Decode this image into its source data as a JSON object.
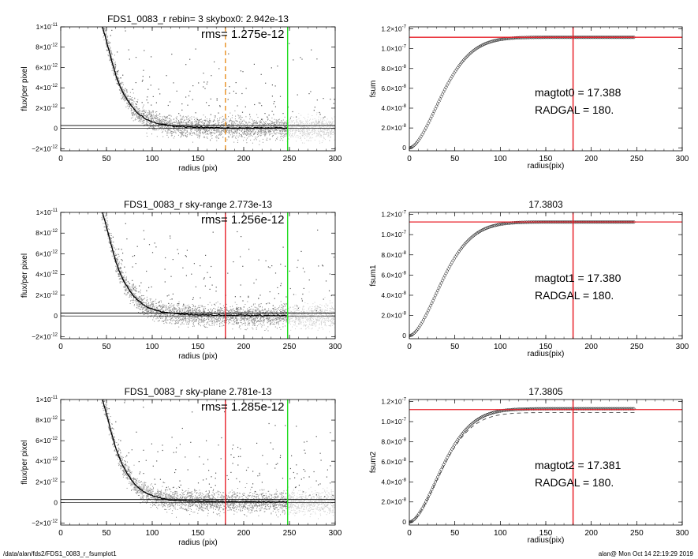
{
  "footer": {
    "path": "/data/alan/fds2/FDS1_0083_r_fsumplot1",
    "stamp": "alan@  Mon Oct 14 22:19:29 2019"
  },
  "colors": {
    "red": "#e8202a",
    "green": "#22dd22",
    "orange": "#e89020",
    "grey": "#8a8a8a",
    "light_grey": "#cfcfcf"
  },
  "chart_data": [
    {
      "id": "profile-1",
      "type": "scatter",
      "title": "FDS1_0083_r rebin= 3    skybox0:  2.942e-13",
      "annotation": "rms= 1.275e-12",
      "xlabel": "radius (pix)",
      "ylabel": "flux/per pixel",
      "xlim": [
        0,
        300
      ],
      "ylim": [
        -2.2e-12,
        1e-11
      ],
      "xticks": [
        "0",
        "50",
        "100",
        "150",
        "200",
        "250",
        "300"
      ],
      "yticks": [
        {
          "v": -2e-12,
          "m": "2",
          "neg": true
        },
        {
          "v": 0,
          "m": "0"
        },
        {
          "v": 2e-12,
          "m": "2"
        },
        {
          "v": 4e-12,
          "m": "4"
        },
        {
          "v": 6e-12,
          "m": "6"
        },
        {
          "v": 8e-12,
          "m": "8"
        },
        {
          "v": 1e-11,
          "m": "1",
          "e": "-11"
        }
      ],
      "sky_level": 2.942e-13,
      "vlines": [
        {
          "x": 180,
          "color": "orange",
          "dashed": true
        },
        {
          "x": 248,
          "color": "green"
        }
      ],
      "profile": [
        [
          45,
          1.02e-11
        ],
        [
          50,
          8.6e-12
        ],
        [
          55,
          6.9e-12
        ],
        [
          60,
          5.3e-12
        ],
        [
          65,
          4.1e-12
        ],
        [
          70,
          3.2e-12
        ],
        [
          75,
          2.5e-12
        ],
        [
          80,
          1.9e-12
        ],
        [
          85,
          1.45e-12
        ],
        [
          90,
          1.1e-12
        ],
        [
          95,
          8.5e-13
        ],
        [
          100,
          6.5e-13
        ],
        [
          110,
          4e-13
        ],
        [
          120,
          2.7e-13
        ],
        [
          130,
          1.9e-13
        ],
        [
          140,
          1.4e-13
        ],
        [
          150,
          1.1e-13
        ],
        [
          160,
          9e-14
        ],
        [
          170,
          7e-14
        ],
        [
          180,
          6e-14
        ],
        [
          200,
          5e-14
        ],
        [
          220,
          4e-14
        ],
        [
          248,
          3e-14
        ]
      ]
    },
    {
      "id": "growth-1",
      "type": "scatter",
      "title": "",
      "annotations": [
        "magtot0 =  17.388",
        "RADGAL =    180."
      ],
      "xlabel": "radius(pix)",
      "ylabel": "fsum",
      "xlim": [
        0,
        300
      ],
      "ylim": [
        -3e-09,
        1.22e-07
      ],
      "xticks": [
        "0",
        "50",
        "100",
        "150",
        "200",
        "250",
        "300"
      ],
      "yticks": [
        {
          "v": 0,
          "m": "0"
        },
        {
          "v": 2e-08,
          "m": "2.0",
          "e": "-8"
        },
        {
          "v": 4e-08,
          "m": "4.0",
          "e": "-8"
        },
        {
          "v": 6e-08,
          "m": "6.0",
          "e": "-8"
        },
        {
          "v": 8e-08,
          "m": "8.0",
          "e": "-8"
        },
        {
          "v": 1e-07,
          "m": "1.0",
          "e": "-7"
        },
        {
          "v": 1.2e-07,
          "m": "1.2",
          "e": "-7"
        }
      ],
      "hline": 1.115e-07,
      "vline": 180,
      "rmax": 248,
      "fmax": 1.115e-07,
      "dashed_curve": false
    },
    {
      "id": "profile-2",
      "type": "scatter",
      "title": "FDS1_0083_r sky-range  2.773e-13",
      "annotation": "rms= 1.256e-12",
      "xlabel": "radius (pix)",
      "ylabel": "flux/per pixel",
      "xlim": [
        0,
        300
      ],
      "ylim": [
        -2.2e-12,
        1e-11
      ],
      "xticks": [
        "0",
        "50",
        "100",
        "150",
        "200",
        "250",
        "300"
      ],
      "yticks": [
        {
          "v": -2e-12,
          "m": "2",
          "neg": true
        },
        {
          "v": 0,
          "m": "0"
        },
        {
          "v": 2e-12,
          "m": "2"
        },
        {
          "v": 4e-12,
          "m": "4"
        },
        {
          "v": 6e-12,
          "m": "6"
        },
        {
          "v": 8e-12,
          "m": "8"
        },
        {
          "v": 1e-11,
          "m": "1",
          "e": "-11"
        }
      ],
      "sky_level": 2.773e-13,
      "vlines": [
        {
          "x": 180,
          "color": "red"
        },
        {
          "x": 248,
          "color": "green"
        }
      ],
      "profile": [
        [
          45,
          1.02e-11
        ],
        [
          50,
          8.6e-12
        ],
        [
          55,
          6.9e-12
        ],
        [
          60,
          5.3e-12
        ],
        [
          65,
          4.1e-12
        ],
        [
          70,
          3.2e-12
        ],
        [
          75,
          2.5e-12
        ],
        [
          80,
          1.9e-12
        ],
        [
          85,
          1.45e-12
        ],
        [
          90,
          1.1e-12
        ],
        [
          95,
          8.5e-13
        ],
        [
          100,
          6.5e-13
        ],
        [
          110,
          4e-13
        ],
        [
          120,
          2.7e-13
        ],
        [
          130,
          1.9e-13
        ],
        [
          140,
          1.4e-13
        ],
        [
          150,
          1.1e-13
        ],
        [
          160,
          9e-14
        ],
        [
          170,
          7e-14
        ],
        [
          180,
          6e-14
        ],
        [
          200,
          5e-14
        ],
        [
          220,
          4e-14
        ],
        [
          248,
          3e-14
        ]
      ]
    },
    {
      "id": "growth-2",
      "type": "scatter",
      "title": "17.3803",
      "annotations": [
        "magtot1 =  17.380",
        "RADGAL =    180."
      ],
      "xlabel": "radius(pix)",
      "ylabel": "fsum1",
      "xlim": [
        0,
        300
      ],
      "ylim": [
        -3e-09,
        1.22e-07
      ],
      "xticks": [
        "0",
        "50",
        "100",
        "150",
        "200",
        "250",
        "300"
      ],
      "yticks": [
        {
          "v": 0,
          "m": "0"
        },
        {
          "v": 2e-08,
          "m": "2.0",
          "e": "-8"
        },
        {
          "v": 4e-08,
          "m": "4.0",
          "e": "-8"
        },
        {
          "v": 6e-08,
          "m": "6.0",
          "e": "-8"
        },
        {
          "v": 8e-08,
          "m": "8.0",
          "e": "-8"
        },
        {
          "v": 1e-07,
          "m": "1.0",
          "e": "-7"
        },
        {
          "v": 1.2e-07,
          "m": "1.2",
          "e": "-7"
        }
      ],
      "hline": 1.125e-07,
      "vline": 180,
      "rmax": 248,
      "fmax": 1.125e-07,
      "dashed_curve": false
    },
    {
      "id": "profile-3",
      "type": "scatter",
      "title": "FDS1_0083_r sky-plane  2.781e-13",
      "annotation": "rms= 1.285e-12",
      "xlabel": "radius (pix)",
      "ylabel": "flux/per pixel",
      "xlim": [
        0,
        300
      ],
      "ylim": [
        -2.2e-12,
        1e-11
      ],
      "xticks": [
        "0",
        "50",
        "100",
        "150",
        "200",
        "250",
        "300"
      ],
      "yticks": [
        {
          "v": -2e-12,
          "m": "2",
          "neg": true
        },
        {
          "v": 0,
          "m": "0"
        },
        {
          "v": 2e-12,
          "m": "2"
        },
        {
          "v": 4e-12,
          "m": "4"
        },
        {
          "v": 6e-12,
          "m": "6"
        },
        {
          "v": 8e-12,
          "m": "8"
        },
        {
          "v": 1e-11,
          "m": "1",
          "e": "-11"
        }
      ],
      "sky_level": 2.781e-13,
      "vlines": [
        {
          "x": 180,
          "color": "red"
        },
        {
          "x": 248,
          "color": "green"
        }
      ],
      "profile": [
        [
          45,
          1.02e-11
        ],
        [
          50,
          8.6e-12
        ],
        [
          55,
          6.9e-12
        ],
        [
          60,
          5.3e-12
        ],
        [
          65,
          4.1e-12
        ],
        [
          70,
          3.2e-12
        ],
        [
          75,
          2.5e-12
        ],
        [
          80,
          1.9e-12
        ],
        [
          85,
          1.45e-12
        ],
        [
          90,
          1.1e-12
        ],
        [
          95,
          8.5e-13
        ],
        [
          100,
          6.5e-13
        ],
        [
          110,
          4e-13
        ],
        [
          120,
          2.7e-13
        ],
        [
          130,
          1.9e-13
        ],
        [
          140,
          1.4e-13
        ],
        [
          150,
          1.1e-13
        ],
        [
          160,
          9e-14
        ],
        [
          170,
          7e-14
        ],
        [
          180,
          6e-14
        ],
        [
          200,
          5e-14
        ],
        [
          220,
          4e-14
        ],
        [
          248,
          3e-14
        ]
      ]
    },
    {
      "id": "growth-3",
      "type": "scatter",
      "title": "17.3805",
      "annotations": [
        "magtot2 =  17.381",
        "RADGAL =    180."
      ],
      "xlabel": "radius(pix)",
      "ylabel": "fsum2",
      "xlim": [
        0,
        300
      ],
      "ylim": [
        -3e-09,
        1.22e-07
      ],
      "xticks": [
        "0",
        "50",
        "100",
        "150",
        "200",
        "250",
        "300"
      ],
      "yticks": [
        {
          "v": 0,
          "m": "0"
        },
        {
          "v": 2e-08,
          "m": "2.0",
          "e": "-8"
        },
        {
          "v": 4e-08,
          "m": "4.0",
          "e": "-8"
        },
        {
          "v": 6e-08,
          "m": "6.0",
          "e": "-8"
        },
        {
          "v": 8e-08,
          "m": "8.0",
          "e": "-8"
        },
        {
          "v": 1e-07,
          "m": "1.0",
          "e": "-7"
        },
        {
          "v": 1.2e-07,
          "m": "1.2",
          "e": "-7"
        }
      ],
      "hline": 1.12e-07,
      "vline": 180,
      "rmax": 248,
      "fmax": 1.128e-07,
      "dashed_curve": true,
      "dashed_fmax": 1.09e-07
    }
  ]
}
